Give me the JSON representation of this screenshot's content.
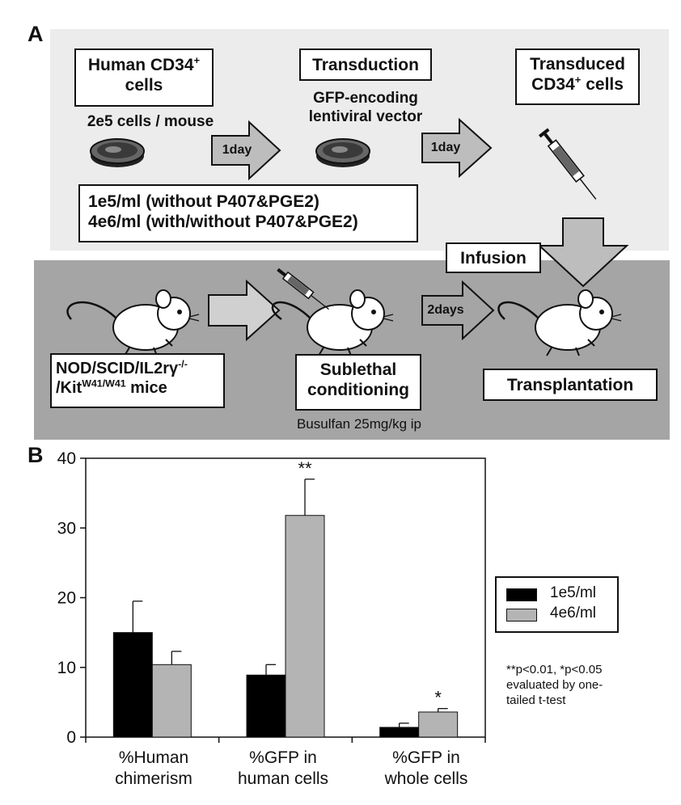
{
  "panel_a": {
    "letter": "A",
    "human_cells": {
      "line1": "Human CD34",
      "sup": "+",
      "line2": "cells"
    },
    "dose_text": "2e5 cells / mouse",
    "arrow1_label": "1day",
    "transduction": "Transduction",
    "vector_text": {
      "line1": "GFP-encoding",
      "line2": "lentiviral vector"
    },
    "arrow2_label": "1day",
    "transduced": {
      "line1": "Transduced",
      "line2_pre": "CD34",
      "sup": "+",
      "line2_post": " cells"
    },
    "conditions": {
      "line1": "1e5/ml (without P407&PGE2)",
      "line2": "4e6/ml (with/without P407&PGE2)"
    },
    "infusion": "Infusion",
    "mice": {
      "line1_pre": "NOD/SCID/IL2rγ",
      "line1_sup": "-/-",
      "line2_pre": "/Kit",
      "line2_sup": "W41/W41",
      "line2_post": " mice"
    },
    "sublethal": {
      "line1": "Sublethal",
      "line2": "conditioning"
    },
    "busulfan": "Busulfan 25mg/kg ip",
    "arrow3_label": "2days",
    "transplantation": "Transplantation"
  },
  "panel_b": {
    "letter": "B",
    "significance_note": {
      "line1": "**p<0.01, *p<0.05",
      "line2": "evaluated by one-",
      "line3": "tailed t-test"
    },
    "category_labels": [
      {
        "line1": "%Human",
        "line2": "chimerism"
      },
      {
        "line1": "%GFP in",
        "line2": "human cells"
      },
      {
        "line1": "%GFP in",
        "line2": "whole cells"
      }
    ]
  },
  "chart_data": {
    "type": "bar",
    "categories": [
      "%Human chimerism",
      "%GFP in human cells",
      "%GFP in whole cells"
    ],
    "series": [
      {
        "name": "1e5/ml",
        "color": "#000000",
        "values": [
          15.0,
          8.9,
          1.4
        ],
        "errors": [
          4.5,
          1.5,
          0.6
        ]
      },
      {
        "name": "4e6/ml",
        "color": "#b4b4b4",
        "values": [
          10.4,
          31.8,
          3.6
        ],
        "errors": [
          1.9,
          5.2,
          0.5
        ]
      }
    ],
    "significance": [
      "",
      "**",
      "*"
    ],
    "ylim": [
      0,
      40
    ],
    "yticks": [
      0,
      10,
      20,
      30,
      40
    ],
    "legend_position": "right",
    "grid": false
  }
}
